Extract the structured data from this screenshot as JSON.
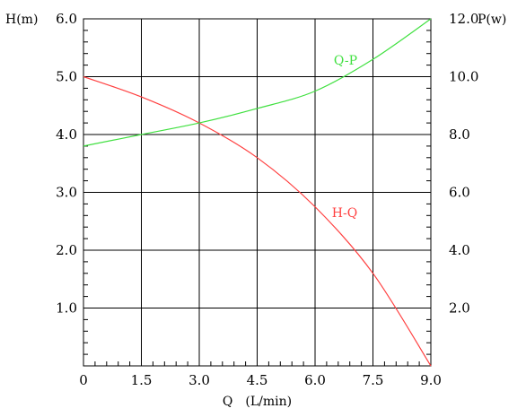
{
  "chart_data": {
    "type": "line",
    "x": {
      "label": "Q　(L/min)",
      "range": [
        0,
        9
      ],
      "ticks": [
        0,
        1.5,
        3.0,
        4.5,
        6.0,
        7.5,
        9.0
      ],
      "tick_labels": [
        "0",
        "1.5",
        "3.0",
        "4.5",
        "6.0",
        "7.5",
        "9.0"
      ]
    },
    "y_left": {
      "label": "H(m)",
      "range": [
        0,
        6
      ],
      "ticks": [
        1,
        2,
        3,
        4,
        5,
        6
      ],
      "tick_labels": [
        "1.0",
        "2.0",
        "3.0",
        "4.0",
        "5.0",
        "6.0"
      ]
    },
    "y_right": {
      "label": "P(w)",
      "range": [
        0,
        12
      ],
      "ticks": [
        2,
        4,
        6,
        8,
        10,
        12
      ],
      "tick_labels": [
        "2.0",
        "4.0",
        "6.0",
        "8.0",
        "10.0",
        "12.0"
      ]
    },
    "grid": true,
    "series": [
      {
        "name": "H-Q",
        "axis": "left",
        "color": "#ff4040",
        "points": [
          [
            0,
            5.0
          ],
          [
            1.5,
            4.65
          ],
          [
            3.0,
            4.2
          ],
          [
            4.5,
            3.6
          ],
          [
            6.0,
            2.75
          ],
          [
            7.5,
            1.6
          ],
          [
            9.0,
            0.0
          ]
        ]
      },
      {
        "name": "Q-P",
        "axis": "right",
        "color": "#40e040",
        "points": [
          [
            0,
            7.6
          ],
          [
            1.5,
            8.0
          ],
          [
            3.0,
            8.4
          ],
          [
            4.5,
            8.9
          ],
          [
            6.0,
            9.5
          ],
          [
            7.5,
            10.6
          ],
          [
            9.0,
            12.0
          ]
        ]
      }
    ]
  }
}
